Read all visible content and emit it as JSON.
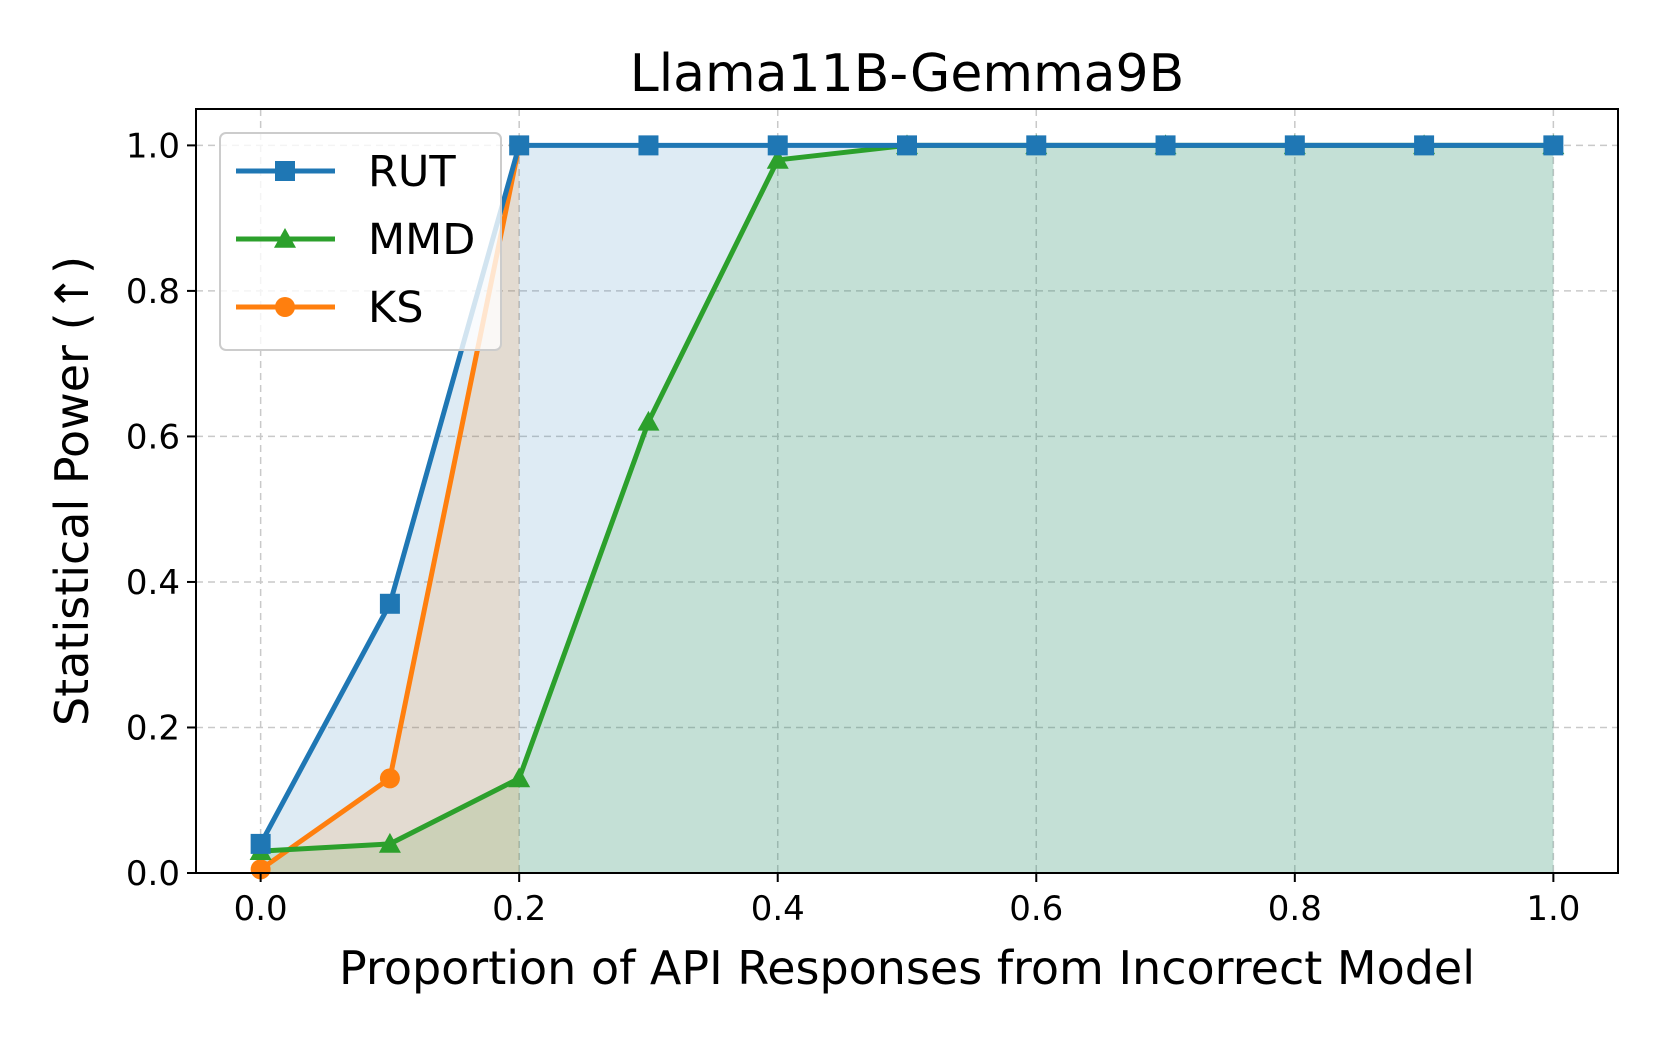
{
  "chart_data": {
    "type": "line",
    "title": "Llama11B-Gemma9B",
    "xlabel": "Proportion of API Responses from Incorrect Model",
    "ylabel": "Statistical Power (↑)",
    "x": [
      0.0,
      0.1,
      0.2,
      0.3,
      0.4,
      0.5,
      0.6,
      0.7,
      0.8,
      0.9,
      1.0
    ],
    "xlim": [
      -0.05,
      1.05
    ],
    "ylim": [
      0.0,
      1.05
    ],
    "xticks": [
      "0.0",
      "0.2",
      "0.4",
      "0.6",
      "0.8",
      "1.0"
    ],
    "yticks": [
      "0.0",
      "0.2",
      "0.4",
      "0.6",
      "0.8",
      "1.0"
    ],
    "grid": true,
    "legend_position": "upper-left",
    "series": [
      {
        "name": "RUT",
        "color": "#1f77b4",
        "fill": "#1f77b4",
        "marker": "square",
        "values": [
          0.04,
          0.37,
          1.0,
          1.0,
          1.0,
          1.0,
          1.0,
          1.0,
          1.0,
          1.0,
          1.0
        ]
      },
      {
        "name": "MMD",
        "color": "#2ca02c",
        "fill": "#2ca02c",
        "marker": "triangle",
        "values": [
          0.03,
          0.04,
          0.13,
          0.62,
          0.98,
          1.0,
          1.0,
          1.0,
          1.0,
          1.0,
          1.0
        ]
      },
      {
        "name": "KS",
        "color": "#ff7f0e",
        "fill": "#ff7f0e",
        "marker": "circle",
        "values": [
          0.005,
          0.13,
          1.0,
          null,
          null,
          null,
          null,
          null,
          null,
          null,
          null
        ]
      }
    ]
  }
}
